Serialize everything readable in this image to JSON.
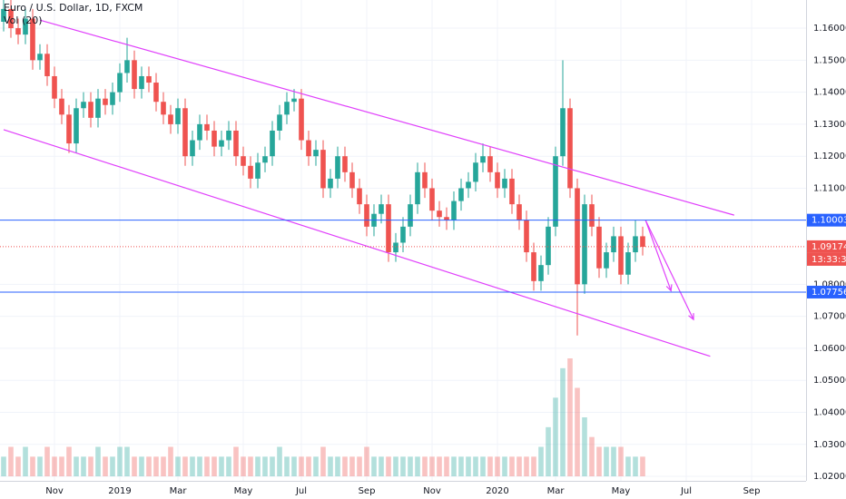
{
  "chart_data": {
    "type": "candlestick",
    "title": "Euro / U.S. Dollar, 1D, FXCM",
    "subtitle": "Vol (20)",
    "up_color": "#26a69a",
    "down_color": "#ef5350",
    "open": [
      1.162,
      1.166,
      1.16,
      1.158,
      1.163,
      1.15,
      1.152,
      1.145,
      1.138,
      1.133,
      1.124,
      1.135,
      1.137,
      1.132,
      1.138,
      1.136,
      1.14,
      1.146,
      1.15,
      1.141,
      1.145,
      1.143,
      1.137,
      1.133,
      1.13,
      1.135,
      1.12,
      1.125,
      1.13,
      1.128,
      1.123,
      1.125,
      1.128,
      1.12,
      1.117,
      1.113,
      1.118,
      1.12,
      1.128,
      1.133,
      1.137,
      1.138,
      1.125,
      1.12,
      1.122,
      1.11,
      1.113,
      1.12,
      1.115,
      1.11,
      1.105,
      1.098,
      1.102,
      1.105,
      1.09,
      1.093,
      1.098,
      1.105,
      1.115,
      1.11,
      1.103,
      1.101,
      1.1,
      1.106,
      1.11,
      1.112,
      1.118,
      1.12,
      1.115,
      1.11,
      1.113,
      1.105,
      1.1,
      1.09,
      1.081,
      1.086,
      1.098,
      1.12,
      1.135,
      1.11,
      1.08,
      1.105,
      1.098,
      1.085,
      1.09,
      1.095,
      1.083,
      1.09,
      1.095
    ],
    "high": [
      1.169,
      1.169,
      1.163,
      1.166,
      1.166,
      1.155,
      1.155,
      1.148,
      1.141,
      1.136,
      1.138,
      1.14,
      1.14,
      1.141,
      1.141,
      1.143,
      1.149,
      1.157,
      1.153,
      1.148,
      1.148,
      1.146,
      1.14,
      1.136,
      1.138,
      1.138,
      1.128,
      1.133,
      1.133,
      1.131,
      1.128,
      1.131,
      1.131,
      1.123,
      1.12,
      1.121,
      1.123,
      1.131,
      1.136,
      1.14,
      1.141,
      1.141,
      1.128,
      1.125,
      1.125,
      1.116,
      1.123,
      1.123,
      1.118,
      1.113,
      1.108,
      1.105,
      1.108,
      1.108,
      1.096,
      1.101,
      1.108,
      1.118,
      1.118,
      1.113,
      1.106,
      1.104,
      1.109,
      1.113,
      1.115,
      1.121,
      1.124,
      1.123,
      1.118,
      1.116,
      1.116,
      1.108,
      1.103,
      1.093,
      1.089,
      1.101,
      1.123,
      1.15,
      1.138,
      1.113,
      1.108,
      1.108,
      1.101,
      1.093,
      1.098,
      1.098,
      1.093,
      1.1,
      1.098
    ],
    "low": [
      1.159,
      1.157,
      1.155,
      1.155,
      1.147,
      1.147,
      1.142,
      1.135,
      1.13,
      1.121,
      1.121,
      1.132,
      1.129,
      1.129,
      1.133,
      1.133,
      1.137,
      1.143,
      1.138,
      1.138,
      1.14,
      1.134,
      1.13,
      1.127,
      1.127,
      1.117,
      1.117,
      1.122,
      1.125,
      1.12,
      1.12,
      1.122,
      1.117,
      1.114,
      1.11,
      1.11,
      1.115,
      1.117,
      1.125,
      1.13,
      1.134,
      1.122,
      1.117,
      1.117,
      1.107,
      1.107,
      1.11,
      1.112,
      1.107,
      1.102,
      1.095,
      1.095,
      1.099,
      1.087,
      1.087,
      1.09,
      1.095,
      1.102,
      1.107,
      1.1,
      1.098,
      1.097,
      1.097,
      1.103,
      1.107,
      1.109,
      1.115,
      1.112,
      1.107,
      1.107,
      1.102,
      1.097,
      1.087,
      1.078,
      1.078,
      1.083,
      1.095,
      1.117,
      1.107,
      1.064,
      1.077,
      1.095,
      1.082,
      1.082,
      1.087,
      1.08,
      1.08,
      1.087,
      1.089
    ],
    "close": [
      1.166,
      1.16,
      1.158,
      1.163,
      1.15,
      1.152,
      1.145,
      1.138,
      1.133,
      1.124,
      1.135,
      1.137,
      1.132,
      1.138,
      1.136,
      1.14,
      1.146,
      1.15,
      1.141,
      1.145,
      1.143,
      1.137,
      1.133,
      1.13,
      1.135,
      1.12,
      1.125,
      1.13,
      1.128,
      1.123,
      1.125,
      1.128,
      1.12,
      1.117,
      1.113,
      1.118,
      1.12,
      1.128,
      1.133,
      1.137,
      1.138,
      1.125,
      1.12,
      1.122,
      1.11,
      1.113,
      1.12,
      1.115,
      1.11,
      1.105,
      1.098,
      1.102,
      1.105,
      1.09,
      1.093,
      1.098,
      1.105,
      1.115,
      1.11,
      1.103,
      1.101,
      1.1,
      1.106,
      1.11,
      1.112,
      1.118,
      1.12,
      1.115,
      1.11,
      1.113,
      1.105,
      1.1,
      1.09,
      1.081,
      1.086,
      1.098,
      1.12,
      1.135,
      1.11,
      1.08,
      1.105,
      1.098,
      1.085,
      1.09,
      1.095,
      1.083,
      1.09,
      1.095,
      1.0917
    ],
    "volume": [
      2,
      3,
      2,
      3,
      2,
      2,
      3,
      2,
      2,
      3,
      2,
      2,
      2,
      3,
      2,
      2,
      3,
      3,
      2,
      2,
      2,
      2,
      2,
      3,
      2,
      2,
      2,
      2,
      2,
      2,
      2,
      2,
      3,
      2,
      2,
      2,
      2,
      2,
      3,
      2,
      2,
      2,
      2,
      2,
      3,
      2,
      2,
      2,
      2,
      2,
      3,
      2,
      2,
      2,
      2,
      2,
      2,
      2,
      2,
      2,
      2,
      2,
      2,
      2,
      2,
      2,
      2,
      2,
      2,
      2,
      2,
      2,
      2,
      2,
      3,
      5,
      8,
      11,
      12,
      9,
      6,
      4,
      3,
      3,
      3,
      3,
      2,
      2,
      2
    ],
    "xlim": [
      0,
      111
    ],
    "xticks": [
      {
        "value": 7,
        "label": "Nov"
      },
      {
        "value": 16,
        "label": "2019"
      },
      {
        "value": 24,
        "label": "Mar"
      },
      {
        "value": 33,
        "label": "May"
      },
      {
        "value": 41,
        "label": "Jul"
      },
      {
        "value": 50,
        "label": "Sep"
      },
      {
        "value": 59,
        "label": "Nov"
      },
      {
        "value": 68,
        "label": "2020"
      },
      {
        "value": 76,
        "label": "Mar"
      },
      {
        "value": 85,
        "label": "May"
      },
      {
        "value": 94,
        "label": "Jul"
      },
      {
        "value": 103,
        "label": "Sep"
      }
    ],
    "ylim": [
      1.0186,
      1.1688
    ],
    "yticks": [
      {
        "value": 1.16,
        "label": "1.16000"
      },
      {
        "value": 1.15,
        "label": "1.15000"
      },
      {
        "value": 1.14,
        "label": "1.14000"
      },
      {
        "value": 1.13,
        "label": "1.13000"
      },
      {
        "value": 1.12,
        "label": "1.12000"
      },
      {
        "value": 1.11,
        "label": "1.11000"
      },
      {
        "value": 1.08,
        "label": "1.08000"
      },
      {
        "value": 1.07,
        "label": "1.07000"
      },
      {
        "value": 1.06,
        "label": "1.06000"
      },
      {
        "value": 1.05,
        "label": "1.05000"
      },
      {
        "value": 1.04,
        "label": "1.04000"
      },
      {
        "value": 1.03,
        "label": "1.03000"
      },
      {
        "value": 1.02,
        "label": "1.02000"
      }
    ],
    "grid": true,
    "levels": [
      {
        "value": 1.10003,
        "color": "#2962ff"
      },
      {
        "value": 1.09174,
        "color": "#ef5350",
        "countdown": "13:33:32"
      },
      {
        "value": 1.07756,
        "color": "#2962ff"
      }
    ],
    "trendlines": {
      "color": "#e040fb",
      "lines": [
        [
          [
            5,
            1.1625
          ],
          [
            100.6,
            1.1016
          ]
        ],
        [
          [
            0,
            1.1283
          ],
          [
            97.3,
            1.0575
          ]
        ]
      ],
      "arrows": [
        [
          [
            88.4,
            1.1
          ],
          [
            91.9,
            1.078
          ]
        ],
        [
          [
            88.4,
            1.1
          ],
          [
            95,
            1.069
          ]
        ]
      ]
    }
  }
}
